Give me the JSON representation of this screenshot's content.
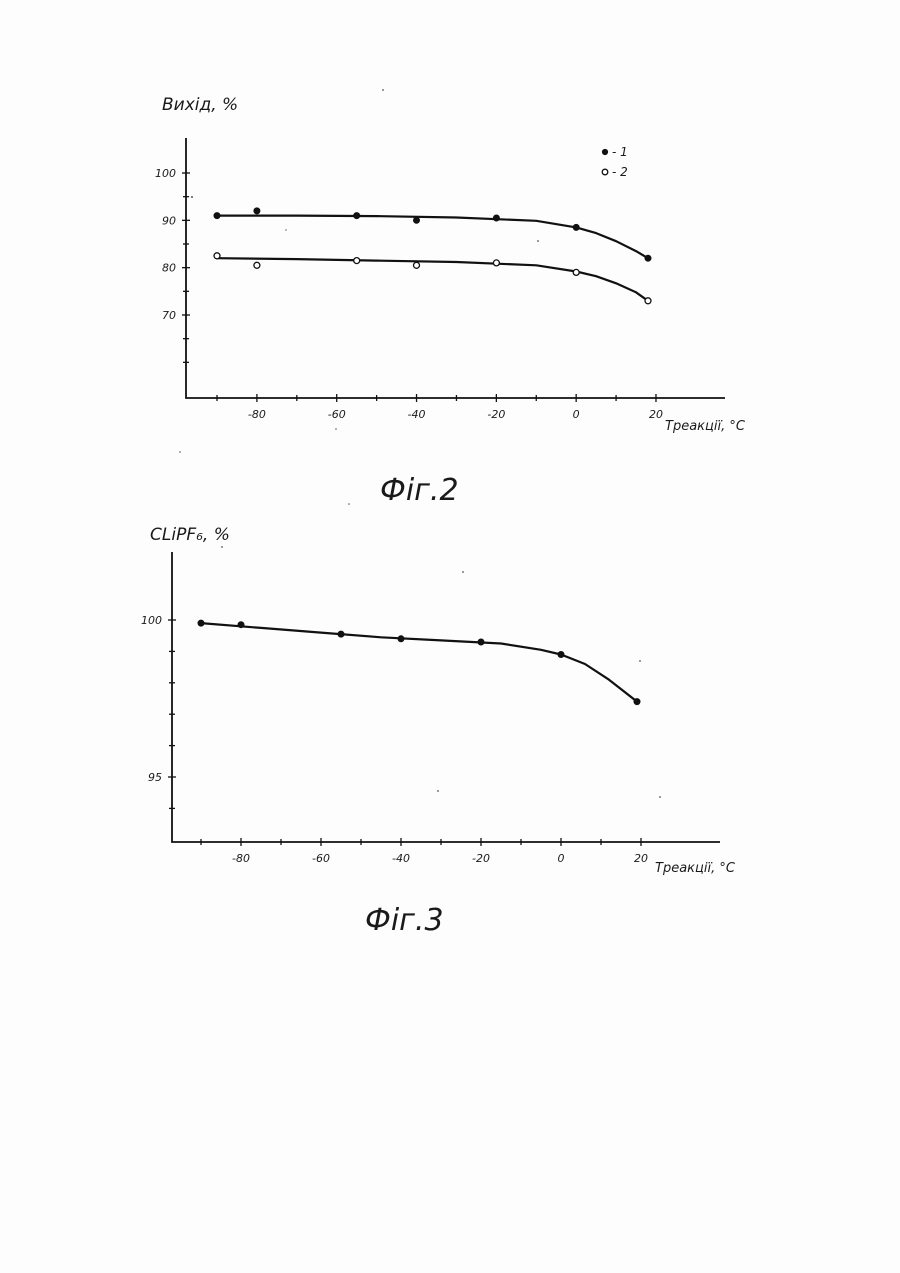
{
  "chart_data": [
    {
      "type": "scatter",
      "caption": "Фіг.2",
      "ylabel": "Вихід, %",
      "xlabel": "Tреакції, °C",
      "x_ticks": [
        "-80",
        "-60",
        "-40",
        "-20",
        "0",
        "20"
      ],
      "y_ticks": [
        "100",
        "90",
        "80",
        "70"
      ],
      "xlim": [
        -95,
        25
      ],
      "ylim": [
        55,
        110
      ],
      "series": [
        {
          "name": "1",
          "legend_label": "- 1",
          "marker": "filled",
          "points": [
            [
              -90,
              91
            ],
            [
              -80,
              92
            ],
            [
              -55,
              91
            ],
            [
              -40,
              90
            ],
            [
              -20,
              90.5
            ],
            [
              0,
              88.5
            ],
            [
              18,
              82
            ]
          ],
          "curve": [
            [
              -90,
              91
            ],
            [
              -70,
              91
            ],
            [
              -50,
              90.9
            ],
            [
              -30,
              90.6
            ],
            [
              -10,
              89.9
            ],
            [
              0,
              88.5
            ],
            [
              5,
              87.3
            ],
            [
              10,
              85.6
            ],
            [
              15,
              83.5
            ],
            [
              18,
              82
            ]
          ]
        },
        {
          "name": "2",
          "legend_label": "- 2",
          "marker": "open",
          "points": [
            [
              -90,
              82.5
            ],
            [
              -80,
              80.5
            ],
            [
              -55,
              81.5
            ],
            [
              -40,
              80.5
            ],
            [
              -20,
              81
            ],
            [
              0,
              79
            ],
            [
              18,
              73
            ]
          ],
          "curve": [
            [
              -90,
              82
            ],
            [
              -70,
              81.8
            ],
            [
              -50,
              81.5
            ],
            [
              -30,
              81.2
            ],
            [
              -10,
              80.5
            ],
            [
              0,
              79.2
            ],
            [
              5,
              78.2
            ],
            [
              10,
              76.7
            ],
            [
              15,
              74.8
            ],
            [
              18,
              73
            ]
          ]
        }
      ]
    },
    {
      "type": "scatter",
      "caption": "Фіг.3",
      "ylabel": "CLiPF₆, %",
      "xlabel": "Tреакції, °C",
      "x_ticks": [
        "-80",
        "-60",
        "-40",
        "-20",
        "0",
        "20"
      ],
      "y_ticks": [
        "100",
        "95"
      ],
      "xlim": [
        -97,
        27
      ],
      "ylim": [
        93,
        102
      ],
      "series": [
        {
          "name": "",
          "marker": "filled",
          "points": [
            [
              -90,
              99.9
            ],
            [
              -80,
              99.85
            ],
            [
              -55,
              99.55
            ],
            [
              -40,
              99.4
            ],
            [
              -20,
              99.3
            ],
            [
              0,
              98.9
            ],
            [
              19,
              97.4
            ]
          ],
          "curve": [
            [
              -90,
              99.9
            ],
            [
              -75,
              99.75
            ],
            [
              -60,
              99.6
            ],
            [
              -45,
              99.45
            ],
            [
              -30,
              99.35
            ],
            [
              -15,
              99.25
            ],
            [
              -5,
              99.05
            ],
            [
              0,
              98.9
            ],
            [
              6,
              98.6
            ],
            [
              12,
              98.1
            ],
            [
              19,
              97.4
            ]
          ]
        }
      ]
    }
  ]
}
